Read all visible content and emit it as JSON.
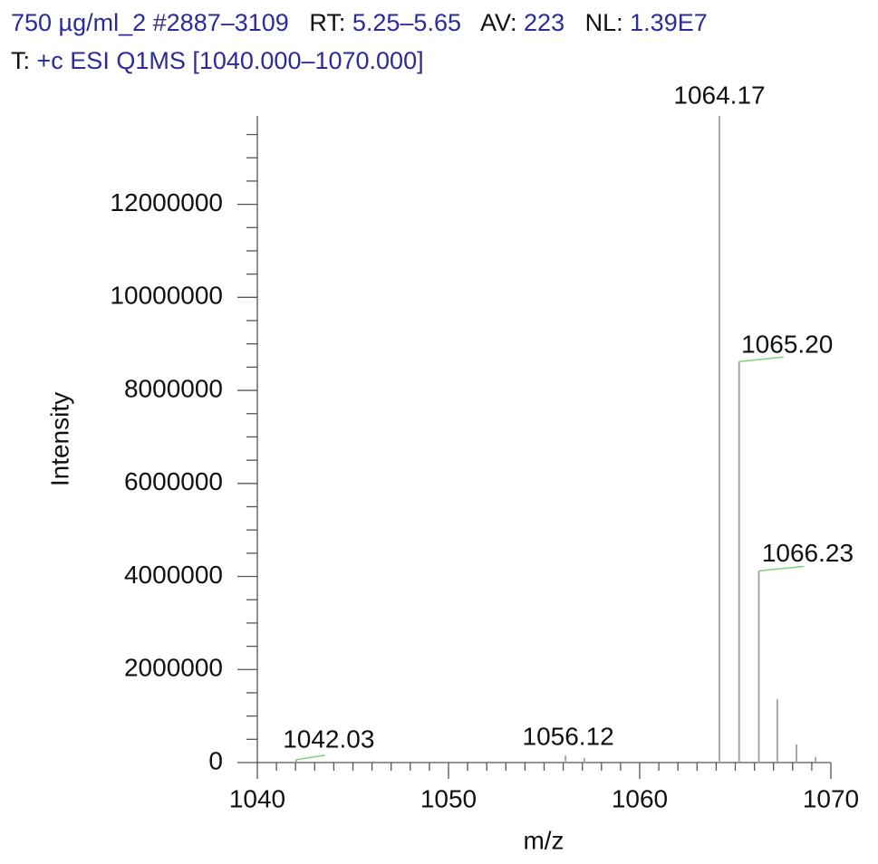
{
  "header": {
    "sample": "750 µg/ml_2 #2887–3109",
    "rt_label": "RT:",
    "rt": "5.25–5.65",
    "av_label": "AV:",
    "av": "223",
    "nl_label": "NL:",
    "nl": "1.39E7",
    "scan_label": "T:",
    "scan": "+c ESI Q1MS [1040.000–1070.000]"
  },
  "chart_data": {
    "type": "stem",
    "xlabel": "m/z",
    "ylabel": "Intensity",
    "color": "#a6a6a6",
    "leader_color": "#7fd07f",
    "x": [
      1042.03,
      1046.1,
      1052.1,
      1056.12,
      1057.1,
      1063.1,
      1064.17,
      1065.2,
      1066.23,
      1067.2,
      1068.2,
      1069.2
    ],
    "values": [
      60000,
      30000,
      30000,
      150000,
      100000,
      30000,
      13900000,
      8620000,
      4120000,
      1360000,
      390000,
      120000
    ],
    "x_labels": [
      "1042.03",
      null,
      null,
      "1056.12",
      null,
      null,
      "1064.17",
      "1065.20",
      "1066.23",
      null,
      null,
      null
    ],
    "xlim": [
      1040,
      1070
    ],
    "xticks": [
      1040,
      1050,
      1060,
      1070
    ],
    "xminorticks": [
      1041,
      1042,
      1043,
      1044,
      1045,
      1046,
      1047,
      1048,
      1049,
      1051,
      1052,
      1053,
      1054,
      1055,
      1056,
      1057,
      1058,
      1059,
      1061,
      1062,
      1063,
      1064,
      1065,
      1066,
      1067,
      1068,
      1069
    ],
    "ylim": [
      0,
      13900000
    ],
    "yticks": [
      0,
      2000000,
      4000000,
      6000000,
      8000000,
      10000000,
      12000000
    ],
    "yminorticks": [
      500000,
      1000000,
      1500000,
      2500000,
      3000000,
      3500000,
      4500000,
      5000000,
      5500000,
      6500000,
      7000000,
      7500000,
      8500000,
      9000000,
      9500000,
      10500000,
      11000000,
      11500000,
      12500000,
      13000000,
      13500000
    ]
  }
}
